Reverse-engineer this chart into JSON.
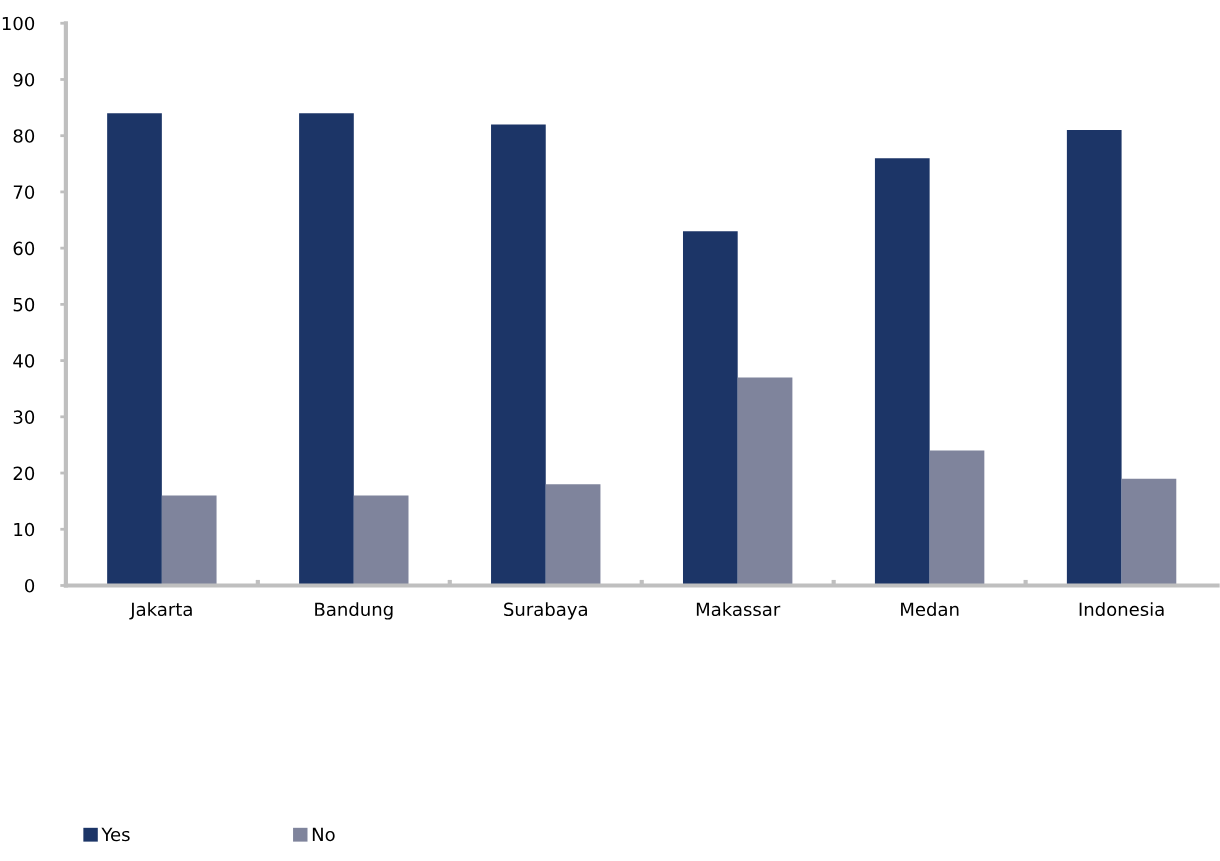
{
  "chart_data": {
    "type": "bar",
    "categories": [
      "Jakarta",
      "Bandung",
      "Surabaya",
      "Makassar",
      "Medan",
      "Indonesia"
    ],
    "series": [
      {
        "name": "Yes",
        "color": "#1c3567",
        "values": [
          84,
          84,
          82,
          63,
          76,
          81
        ]
      },
      {
        "name": "No",
        "color": "#7f849c",
        "values": [
          16,
          16,
          18,
          37,
          24,
          19
        ]
      }
    ],
    "ylim": [
      0,
      100
    ],
    "yticks": [
      0,
      10,
      20,
      30,
      40,
      50,
      60,
      70,
      80,
      90,
      100
    ],
    "grid": false,
    "legend": "bottom left"
  }
}
